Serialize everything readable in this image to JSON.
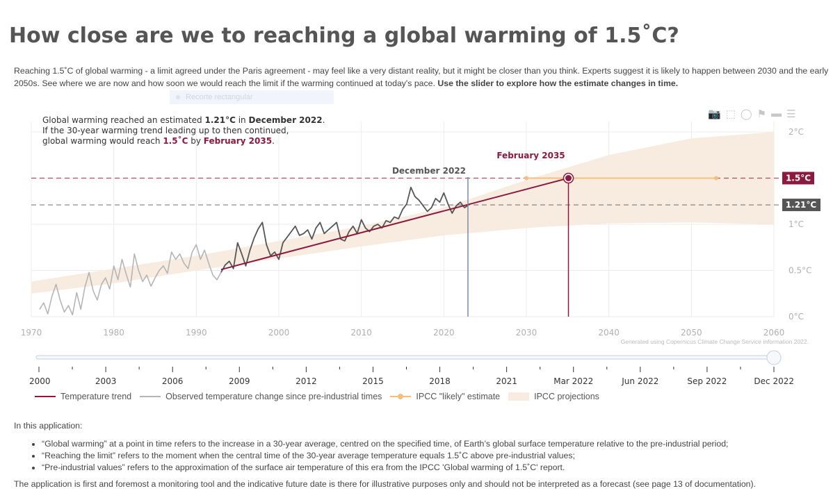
{
  "title": "How close are we to reaching a global warming of 1.5˚C?",
  "intro": {
    "text": "Reaching 1.5˚C of global warming - a limit agreed under the Paris agreement - may feel like a very distant reality, but it might be closer than you think. Experts suggest it is likely to happen between 2030 and the early 2050s. See where we are now and how soon we would reach the limit if the warming continued at today's pace.",
    "bold": "Use the slider to explore how the estimate changes in time."
  },
  "ghost_tooltip": "Recorte rectangular",
  "annotation": {
    "l1_a": "Global warming reached an estimated ",
    "l1_b": "1.21°C",
    "l1_c": " in ",
    "l1_d": "December 2022",
    "l1_e": ".",
    "l2": "If the 30-year warming trend leading up to then continued,",
    "l3_a": "global warming would reach ",
    "l3_b": "1.5˚C",
    "l3_c": " by ",
    "l3_d": "February 2035",
    "l3_e": "."
  },
  "labels": {
    "current_date": "December 2022",
    "limit_date": "February 2035",
    "limit_value": "1.5°C",
    "current_value": "1.21°C",
    "credit": "Generated using Copernicus Climate Change Service information 2022."
  },
  "chart_data": {
    "type": "line",
    "x_axis": {
      "range": [
        1970,
        2060
      ],
      "ticks": [
        1970,
        1980,
        1990,
        2000,
        2010,
        2020,
        2030,
        2040,
        2050,
        2060
      ]
    },
    "y_axis": {
      "range": [
        0,
        2
      ],
      "ticks": [
        0,
        0.5,
        1,
        1.5,
        2
      ],
      "tick_labels": [
        "0°C",
        "0.5°C",
        "1°C",
        "",
        "2°C"
      ],
      "side": "right"
    },
    "reference_lines": [
      {
        "y": 1.5,
        "label": "1.5°C",
        "color": "#8b1a3e"
      },
      {
        "y": 1.21,
        "label": "1.21°C",
        "color": "#555555"
      }
    ],
    "markers": [
      {
        "x": 2022.92,
        "label": "December 2022",
        "color": "#7c8aa5"
      },
      {
        "x": 2035.1,
        "label": "February 2035",
        "color": "#8b1a3e"
      }
    ],
    "series": [
      {
        "name": "Observed temperature change since pre-industrial times",
        "color_old": "#b5b5b5",
        "color_recent": "#555555",
        "recent_from": 1993,
        "x": [
          1971.0,
          1971.5,
          1972.0,
          1972.5,
          1973.0,
          1973.5,
          1974.0,
          1974.5,
          1975.0,
          1975.5,
          1976.0,
          1976.5,
          1977.0,
          1977.5,
          1978.0,
          1978.5,
          1979.0,
          1979.5,
          1980.0,
          1980.5,
          1981.0,
          1981.5,
          1982.0,
          1982.5,
          1983.0,
          1983.5,
          1984.0,
          1984.5,
          1985.0,
          1985.5,
          1986.0,
          1986.5,
          1987.0,
          1987.5,
          1988.0,
          1988.5,
          1989.0,
          1989.5,
          1990.0,
          1990.5,
          1991.0,
          1991.5,
          1992.0,
          1992.5,
          1993.0,
          1993.5,
          1994.0,
          1994.5,
          1995.0,
          1995.5,
          1996.0,
          1996.5,
          1997.0,
          1997.5,
          1998.0,
          1998.5,
          1999.0,
          1999.5,
          2000.0,
          2000.5,
          2001.0,
          2001.5,
          2002.0,
          2002.5,
          2003.0,
          2003.5,
          2004.0,
          2004.5,
          2005.0,
          2005.5,
          2006.0,
          2006.5,
          2007.0,
          2007.5,
          2008.0,
          2008.5,
          2009.0,
          2009.5,
          2010.0,
          2010.5,
          2011.0,
          2011.5,
          2012.0,
          2012.5,
          2013.0,
          2013.5,
          2014.0,
          2014.5,
          2015.0,
          2015.5,
          2016.0,
          2016.5,
          2017.0,
          2017.5,
          2018.0,
          2018.5,
          2019.0,
          2019.5,
          2020.0,
          2020.5,
          2021.0,
          2021.5,
          2022.0,
          2022.5,
          2023.0
        ],
        "y": [
          0.08,
          0.15,
          0.03,
          0.22,
          0.35,
          0.18,
          0.05,
          0.12,
          0.02,
          0.26,
          0.08,
          0.32,
          0.48,
          0.28,
          0.18,
          0.35,
          0.42,
          0.3,
          0.55,
          0.4,
          0.62,
          0.46,
          0.32,
          0.68,
          0.5,
          0.38,
          0.45,
          0.33,
          0.42,
          0.5,
          0.55,
          0.47,
          0.7,
          0.62,
          0.68,
          0.58,
          0.52,
          0.7,
          0.78,
          0.62,
          0.72,
          0.58,
          0.45,
          0.4,
          0.48,
          0.56,
          0.6,
          0.52,
          0.8,
          0.68,
          0.55,
          0.72,
          0.85,
          0.95,
          1.02,
          0.78,
          0.66,
          0.7,
          0.62,
          0.8,
          0.86,
          0.92,
          0.98,
          0.88,
          0.9,
          0.94,
          0.84,
          0.96,
          1.02,
          0.9,
          0.94,
          0.98,
          1.02,
          0.84,
          0.82,
          0.92,
          0.98,
          0.9,
          1.05,
          0.96,
          0.92,
          0.98,
          1.0,
          0.96,
          1.04,
          1.02,
          1.08,
          1.06,
          1.16,
          1.22,
          1.4,
          1.3,
          1.26,
          1.2,
          1.14,
          1.18,
          1.28,
          1.24,
          1.34,
          1.22,
          1.12,
          1.2,
          1.24,
          1.18,
          1.21
        ]
      },
      {
        "name": "Temperature trend",
        "color": "#8b1a3e",
        "x": [
          1993.0,
          2035.1
        ],
        "y": [
          0.51,
          1.5
        ]
      },
      {
        "name": "IPCC \"likely\" estimate",
        "color": "#f2c07e",
        "x": [
          2030,
          2053
        ],
        "y": [
          1.5,
          1.5
        ]
      },
      {
        "name": "IPCC projections",
        "color": "#f8ebe0",
        "x": [
          1970,
          1980,
          1990,
          2000,
          2010,
          2020,
          2030,
          2040,
          2050,
          2060
        ],
        "upper": [
          0.38,
          0.52,
          0.66,
          0.82,
          0.98,
          1.18,
          1.48,
          1.75,
          1.93,
          2.0
        ],
        "lower": [
          0.25,
          0.36,
          0.5,
          0.63,
          0.76,
          0.88,
          0.96,
          1.01,
          1.02,
          1.0
        ]
      }
    ]
  },
  "slider": {
    "ticks": [
      "2000",
      "2003",
      "2006",
      "2009",
      "2012",
      "2015",
      "2018",
      "2021",
      "Mar 2022",
      "Jun 2022",
      "Sep 2022",
      "Dec 2022"
    ],
    "value": "Dec 2022"
  },
  "legend": [
    {
      "label": "Temperature trend",
      "color": "#8b1a3e",
      "kind": "line"
    },
    {
      "label": "Observed temperature change since pre-industrial times",
      "color": "#b5b5b5",
      "kind": "line"
    },
    {
      "label": "IPCC \"likely\" estimate",
      "color": "#f2c07e",
      "kind": "line-marker"
    },
    {
      "label": "IPCC projections",
      "color": "#f8ebe0",
      "kind": "area"
    }
  ],
  "notes": {
    "heading": "In this application:",
    "items": [
      "“Global warming” at a point in time refers to the increase in a 30-year average, centred on the specified time, of Earth’s global surface temperature relative to the pre-industrial period;",
      "“Reaching the limit” refers to the moment when the central time of the 30-year average temperature equals 1.5˚C above pre-industrial values;",
      "“Pre-industrial values” refers to the approximation of the surface air temperature of this era from the IPCC 'Global warming of 1.5˚C' report."
    ],
    "closing": "The application is first and foremost a monitoring tool and the indicative future date is there for illustrative purposes only and should not be interpreted as a forecast (see page 13 of documentation)."
  },
  "modebar_icons": [
    "camera-icon",
    "box-select-icon",
    "lasso-icon",
    "spike-icon",
    "hover-closest-icon",
    "hover-compare-icon"
  ]
}
